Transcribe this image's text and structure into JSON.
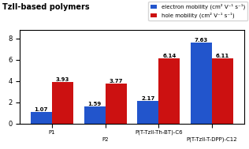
{
  "chart_data": {
    "type": "bar",
    "title": "TzII-based polymers",
    "categories": [
      "P1",
      "P2",
      "P(T-TzII-Th-BT)-C6",
      "P(T-TzII-T-DPP)-C12"
    ],
    "series": [
      {
        "name": "electron mobility (cm² V⁻¹ s⁻¹)",
        "color": "#2255cc",
        "values": [
          1.07,
          1.59,
          2.17,
          7.63
        ]
      },
      {
        "name": "hole mobility (cm² V⁻¹ s⁻¹)",
        "color": "#cc1111",
        "values": [
          3.93,
          3.77,
          6.14,
          6.11
        ]
      }
    ],
    "ylim": [
      0,
      8.8
    ],
    "yticks": [
      0,
      2,
      4,
      6,
      8
    ],
    "legend": "upper right",
    "data_labels": true
  }
}
